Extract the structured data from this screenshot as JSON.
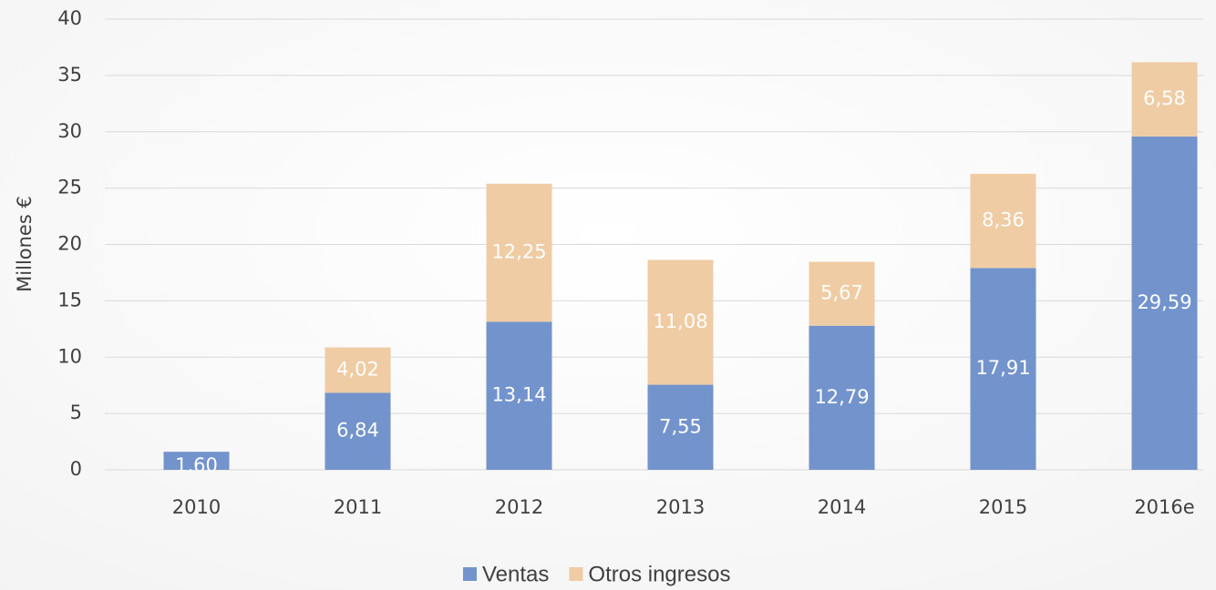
{
  "chart_data": {
    "type": "stacked_bar",
    "y_label": "Millones €",
    "categories": [
      "2010",
      "2011",
      "2012",
      "2013",
      "2014",
      "2015",
      "2016e"
    ],
    "series": [
      {
        "name": "Ventas",
        "color": "#7293cb",
        "values": [
          1.6,
          6.84,
          13.14,
          7.55,
          12.79,
          17.91,
          29.59
        ],
        "value_labels": [
          "1,60",
          "6,84",
          "13,14",
          "7,55",
          "12,79",
          "17,91",
          "29,59"
        ]
      },
      {
        "name": "Otros ingresos",
        "color": "#f0cca4",
        "values": [
          null,
          4.02,
          12.25,
          11.08,
          5.67,
          8.36,
          6.58
        ],
        "value_labels": [
          null,
          "4,02",
          "12,25",
          "11,08",
          "5,67",
          "8,36",
          "6,58"
        ]
      }
    ],
    "ylim": [
      0,
      40
    ],
    "yticks": [
      0,
      5,
      10,
      15,
      20,
      25,
      30,
      35,
      40
    ],
    "grid": true,
    "legend": "bottom"
  }
}
